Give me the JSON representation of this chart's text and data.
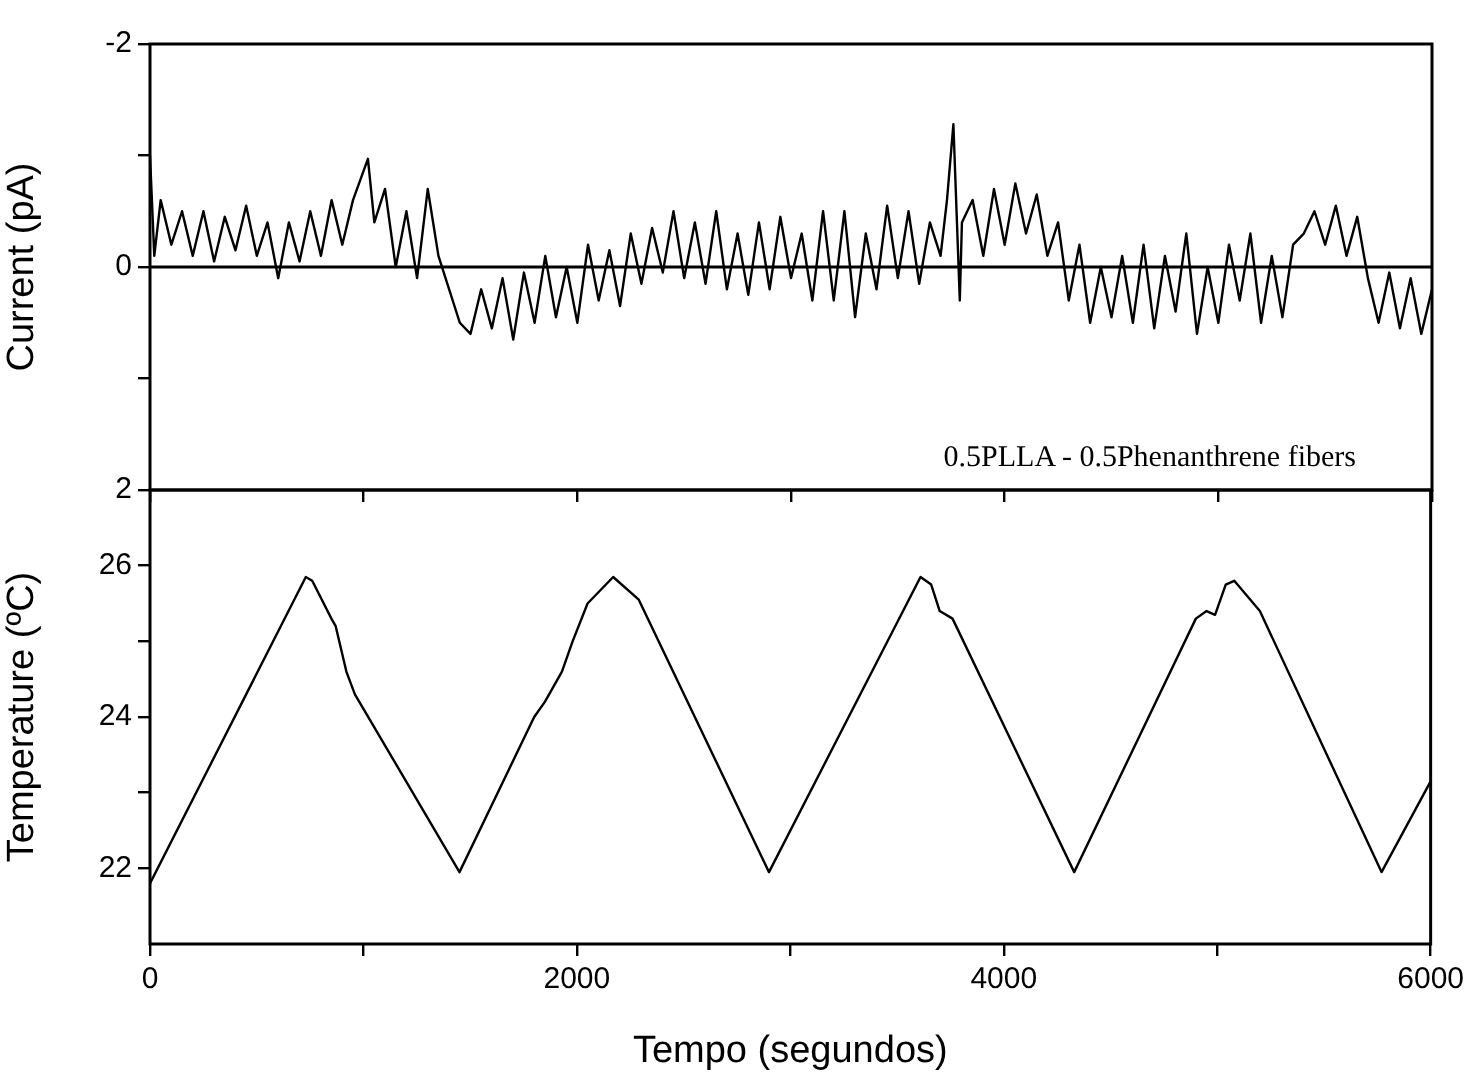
{
  "chart_data": [
    {
      "type": "line",
      "ylabel": "Current (pA)",
      "color": "#000000",
      "marker": "none",
      "xlim": [
        0,
        6000
      ],
      "xticks": [
        0,
        {
          "value": 1000,
          "label": null
        },
        2000,
        {
          "value": 3000,
          "label": null
        },
        4000,
        {
          "value": 5000,
          "label": null
        },
        6000
      ],
      "ylim": [
        2,
        -2
      ],
      "yticks": [
        -2,
        {
          "value": -1,
          "label": null
        },
        0,
        {
          "value": 1,
          "label": null
        },
        2
      ],
      "tick_labels": "y",
      "ref_lines": [
        {
          "axis": "y",
          "value": 0,
          "color": "#000000"
        }
      ],
      "annotations": [
        "0.5PLLA - 0.5Phenanthrene fibers"
      ],
      "x": [
        0,
        20,
        50,
        100,
        150,
        200,
        250,
        300,
        350,
        400,
        450,
        500,
        550,
        600,
        650,
        700,
        750,
        800,
        850,
        900,
        950,
        1020,
        1050,
        1100,
        1150,
        1200,
        1250,
        1300,
        1350,
        1400,
        1450,
        1500,
        1550,
        1600,
        1650,
        1700,
        1750,
        1800,
        1850,
        1900,
        1950,
        2000,
        2050,
        2100,
        2150,
        2200,
        2250,
        2300,
        2350,
        2400,
        2450,
        2500,
        2550,
        2600,
        2650,
        2700,
        2750,
        2800,
        2850,
        2900,
        2950,
        3000,
        3050,
        3100,
        3150,
        3200,
        3250,
        3300,
        3350,
        3400,
        3450,
        3500,
        3550,
        3600,
        3650,
        3700,
        3730,
        3760,
        3790,
        3800,
        3850,
        3900,
        3950,
        4000,
        4050,
        4100,
        4150,
        4200,
        4250,
        4300,
        4350,
        4400,
        4450,
        4500,
        4550,
        4600,
        4650,
        4700,
        4750,
        4800,
        4850,
        4900,
        4950,
        5000,
        5050,
        5100,
        5150,
        5200,
        5250,
        5300,
        5350,
        5400,
        5450,
        5500,
        5550,
        5600,
        5650,
        5700,
        5750,
        5800,
        5850,
        5900,
        5950,
        6000
      ],
      "values": [
        -1.0,
        -0.1,
        -0.6,
        -0.2,
        -0.5,
        -0.1,
        -0.5,
        -0.05,
        -0.45,
        -0.15,
        -0.55,
        -0.1,
        -0.4,
        0.1,
        -0.4,
        -0.05,
        -0.5,
        -0.1,
        -0.6,
        -0.2,
        -0.6,
        -0.97,
        -0.4,
        -0.7,
        0.0,
        -0.5,
        0.1,
        -0.7,
        -0.1,
        0.2,
        0.5,
        0.6,
        0.2,
        0.55,
        0.1,
        0.65,
        0.05,
        0.5,
        -0.1,
        0.45,
        0.0,
        0.5,
        -0.2,
        0.3,
        -0.15,
        0.35,
        -0.3,
        0.15,
        -0.35,
        0.05,
        -0.5,
        0.1,
        -0.4,
        0.15,
        -0.5,
        0.2,
        -0.3,
        0.25,
        -0.4,
        0.2,
        -0.45,
        0.1,
        -0.3,
        0.3,
        -0.5,
        0.3,
        -0.5,
        0.45,
        -0.3,
        0.2,
        -0.55,
        0.1,
        -0.5,
        0.15,
        -0.4,
        -0.1,
        -0.6,
        -1.28,
        0.3,
        -0.4,
        -0.6,
        -0.1,
        -0.7,
        -0.2,
        -0.75,
        -0.3,
        -0.65,
        -0.1,
        -0.4,
        0.3,
        -0.2,
        0.5,
        0.0,
        0.45,
        -0.1,
        0.5,
        -0.2,
        0.55,
        -0.1,
        0.4,
        -0.3,
        0.6,
        0.0,
        0.5,
        -0.2,
        0.3,
        -0.3,
        0.5,
        -0.1,
        0.45,
        -0.2,
        -0.3,
        -0.5,
        -0.2,
        -0.55,
        -0.1,
        -0.45,
        0.1,
        0.5,
        0.05,
        0.55,
        0.1,
        0.6,
        0.2
      ]
    },
    {
      "type": "line",
      "xlabel": "Tempo (segundos)",
      "ylabel": "Temperature (ºC)",
      "color": "#000000",
      "marker": "none",
      "xlim": [
        0,
        6000
      ],
      "xticks": [
        0,
        {
          "value": 1000,
          "label": null
        },
        2000,
        {
          "value": 3000,
          "label": null
        },
        4000,
        {
          "value": 5000,
          "label": null
        },
        6000
      ],
      "ylim": [
        21,
        27
      ],
      "yticks": [
        22,
        {
          "value": 23,
          "label": null
        },
        24,
        {
          "value": 25,
          "label": null
        },
        26
      ],
      "x": [
        0,
        730,
        760,
        850,
        870,
        920,
        960,
        1450,
        1800,
        1850,
        1930,
        1980,
        2050,
        2170,
        2290,
        2900,
        3610,
        3660,
        3700,
        3760,
        4330,
        4900,
        4950,
        4990,
        5040,
        5080,
        5200,
        5770,
        6000
      ],
      "values": [
        21.8,
        25.85,
        25.8,
        25.3,
        25.2,
        24.6,
        24.3,
        21.95,
        24.0,
        24.2,
        24.6,
        25.0,
        25.5,
        25.85,
        25.55,
        21.95,
        25.85,
        25.75,
        25.4,
        25.3,
        21.95,
        25.3,
        25.4,
        25.35,
        25.75,
        25.8,
        25.4,
        21.95,
        23.15
      ]
    }
  ]
}
